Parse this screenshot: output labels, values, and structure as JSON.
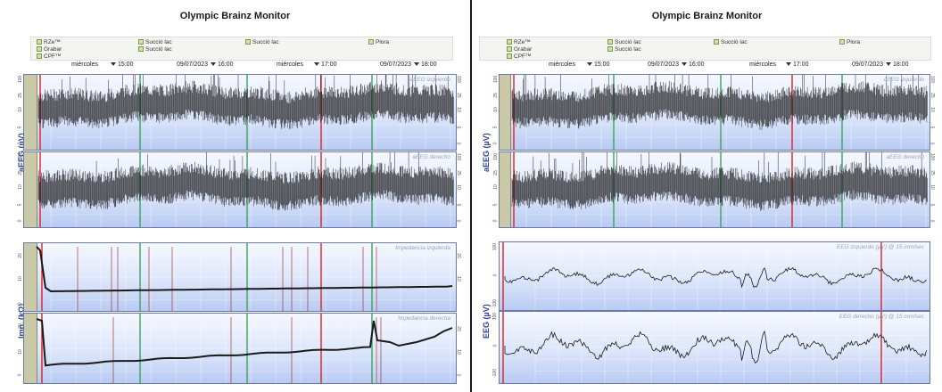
{
  "left": {
    "title": "Olympic Brainz Monitor",
    "legend": [
      "RZe™",
      "Grabar",
      "CPF™",
      "Succió lac",
      "Succió lac",
      "Succió lac",
      "Plora"
    ],
    "times": [
      "miércoles",
      "15:00",
      "09/07/2023",
      "16:00",
      "miércoles",
      "17:00",
      "09/07/2023",
      "18:00"
    ],
    "top_chart_labels": [
      "aEEG izquierdo",
      "aEEG derecho"
    ],
    "top_ylabel": "aEEG (µV)",
    "bottom_chart_labels": [
      "Impedancia izquierda",
      "Impedancia derecha"
    ],
    "bottom_ylabel": "Imp. (kΩ)",
    "aeeg_ticks": [
      "100",
      "50",
      "25",
      "10",
      "5",
      "0"
    ],
    "imp_ticks": [
      "20",
      "10",
      "0"
    ]
  },
  "right": {
    "title": "Olympic Brainz Monitor",
    "legend": [
      "RZe™",
      "Grabar",
      "CPF™",
      "Succió lac",
      "Succió lac",
      "Succió lac",
      "Plora"
    ],
    "times": [
      "miércoles",
      "15:00",
      "09/07/2023",
      "16:00",
      "miércoles",
      "17:00",
      "09/07/2023",
      "18:00"
    ],
    "top_chart_labels": [
      "aEEG izquierdo",
      "aEEG derecho"
    ],
    "top_ylabel": "aEEG (µV)",
    "bottom_chart_labels": [
      "EEG izquierdo  (µV) @ 15 mm/sec",
      "EEG derecho  (µV) @ 15 mm/sec"
    ],
    "bottom_ylabel": "EEG (µV)",
    "aeeg_ticks": [
      "100",
      "50",
      "25",
      "10",
      "5",
      "0"
    ],
    "eeg_ticks": [
      "100",
      "0",
      "-100"
    ]
  },
  "colors": {
    "marker_green": "#3aa35a",
    "marker_red": "#e02020",
    "trace": "#1a1a1a",
    "axis_label": "#2b3f8f"
  }
}
